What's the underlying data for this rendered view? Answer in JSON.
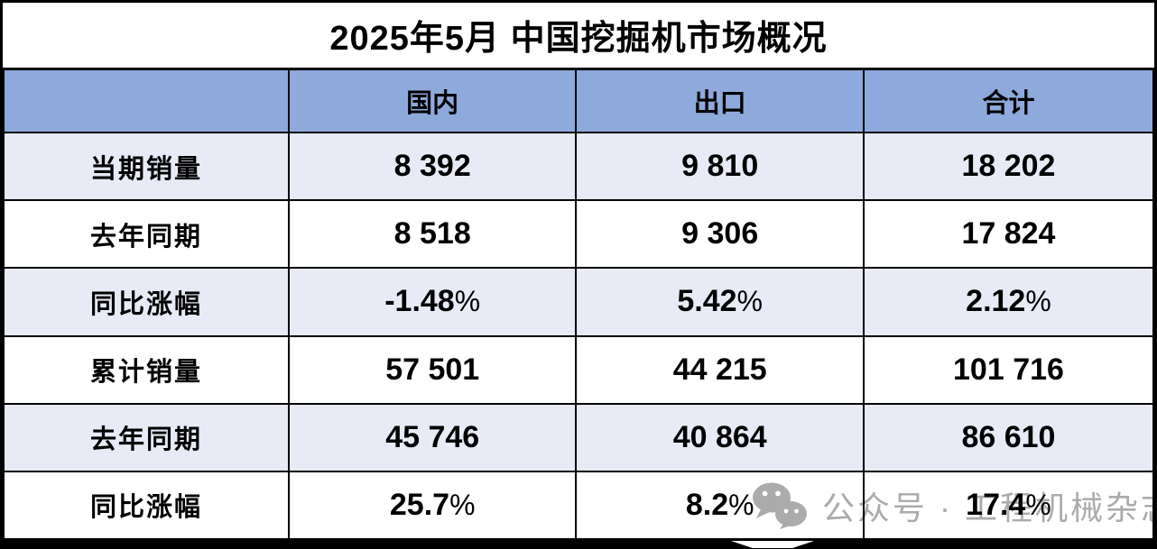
{
  "chart_data": {
    "type": "table",
    "title": "2025年5月 中国挖掘机市场概况",
    "columns": [
      "",
      "国内",
      "出口",
      "合计"
    ],
    "rows": [
      {
        "label": "当期销量",
        "values": [
          "8 392",
          "9 810",
          "18 202"
        ]
      },
      {
        "label": "去年同期",
        "values": [
          "8 518",
          "9 306",
          "17 824"
        ]
      },
      {
        "label": "同比涨幅",
        "values": [
          "-1.48%",
          "5.42%",
          "2.12%"
        ]
      },
      {
        "label": "累计销量",
        "values": [
          "57 501",
          "44 215",
          "101 716"
        ]
      },
      {
        "label": "去年同期",
        "values": [
          "45 746",
          "40 864",
          "86 610"
        ]
      },
      {
        "label": "同比涨幅",
        "values": [
          "25.7%",
          "8.2%",
          "17.4%"
        ]
      }
    ],
    "layout": {
      "header_fill": true,
      "alternating_rows": true,
      "grid": true
    }
  },
  "watermark": {
    "icon": "wechat-icon",
    "text": "公众号 · 工程机械杂志"
  },
  "colors": {
    "header_bg": "#8EA9DB",
    "alt_row_bg": "#E8EAF5",
    "border": "#000000",
    "watermark_gray": "#ABABAB"
  }
}
